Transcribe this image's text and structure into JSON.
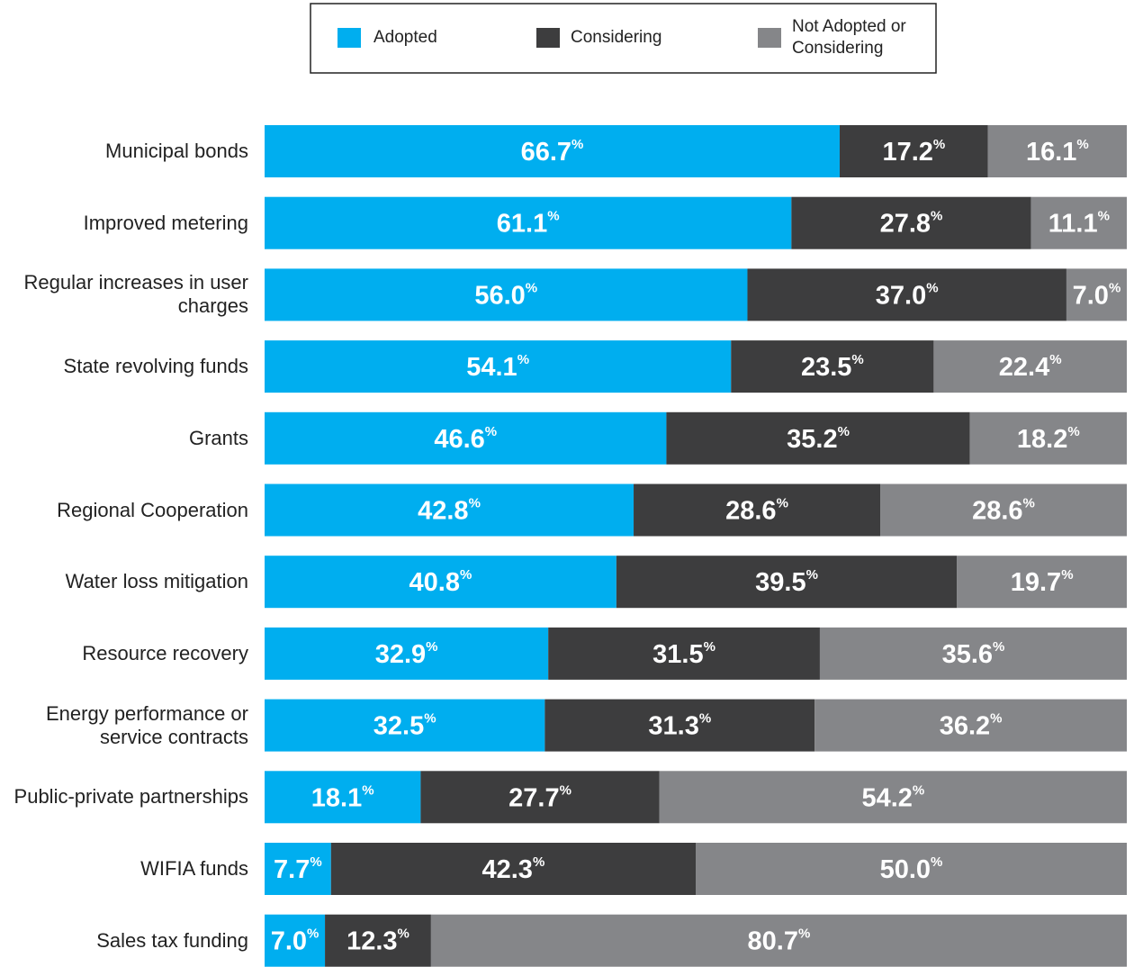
{
  "chart_data": {
    "type": "stacked-bar-horizontal",
    "categories": [
      "Municipal bonds",
      "Improved metering",
      "Regular increases in user charges",
      "State revolving funds",
      "Grants",
      "Regional Cooperation",
      "Water loss mitigation",
      "Resource recovery",
      "Energy performance or service contracts",
      "Public-private partnerships",
      "WIFIA funds",
      "Sales tax funding"
    ],
    "series": [
      {
        "name": "Adopted",
        "color": "#00aeef",
        "values": [
          66.7,
          61.1,
          56.0,
          54.1,
          46.6,
          42.8,
          40.8,
          32.9,
          32.5,
          18.1,
          7.7,
          7.0
        ],
        "value_labels": [
          "66.7%",
          "61.1%",
          "56.0%",
          "54.1%",
          "46.6%",
          "42.8%",
          "40.8%",
          "32.9%",
          "32.5%",
          "18.1%",
          "7.7%",
          "7.0%"
        ]
      },
      {
        "name": "Considering",
        "color": "#3d3d3e",
        "values": [
          17.2,
          27.8,
          37.0,
          23.5,
          35.2,
          28.6,
          39.5,
          31.5,
          31.3,
          27.7,
          42.3,
          12.3
        ],
        "value_labels": [
          "17.2%",
          "27.8%",
          "37.0%",
          "23.5%",
          "35.2%",
          "28.6%",
          "39.5%",
          "31.5%",
          "31.3%",
          "27.7%",
          "42.3%",
          "12.3%"
        ]
      },
      {
        "name": "Not Adopted or Considering",
        "color": "#858689",
        "values": [
          16.1,
          11.1,
          7.0,
          22.4,
          18.2,
          28.6,
          19.7,
          35.6,
          36.2,
          54.2,
          50.0,
          80.7
        ],
        "value_labels": [
          "16.1%",
          "11.1%",
          "7.0%",
          "22.4%",
          "18.2%",
          "28.6%",
          "19.7%",
          "35.6%",
          "36.2%",
          "54.2%",
          "50.0%",
          "80.7%"
        ]
      }
    ],
    "xlim": [
      0,
      100
    ],
    "legend": "top"
  }
}
